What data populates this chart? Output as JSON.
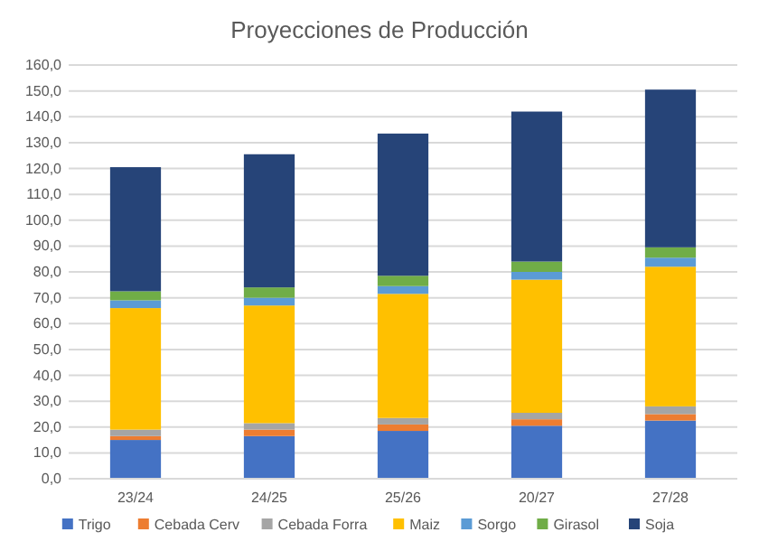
{
  "chart_data": {
    "type": "bar",
    "title": "Proyecciones de Producción",
    "stacked": true,
    "categories": [
      "23/24",
      "24/25",
      "25/26",
      "20/27",
      "27/28"
    ],
    "series": [
      {
        "name": "Trigo",
        "color": "#4472c4",
        "values": [
          15,
          16.5,
          18.5,
          20.5,
          22.5
        ]
      },
      {
        "name": "Cebada Cerv",
        "color": "#ed7d31",
        "values": [
          1.5,
          2.5,
          2.5,
          2.5,
          2.5
        ]
      },
      {
        "name": "Cebada Forra",
        "color": "#a5a5a5",
        "values": [
          2.5,
          2.5,
          2.5,
          2.5,
          3
        ]
      },
      {
        "name": "Maiz",
        "color": "#ffc000",
        "values": [
          47,
          45.5,
          48,
          51.5,
          54
        ]
      },
      {
        "name": "Sorgo",
        "color": "#5b9bd5",
        "values": [
          3,
          3,
          3,
          3,
          3.5
        ]
      },
      {
        "name": "Girasol",
        "color": "#70ad47",
        "values": [
          3.5,
          4,
          4,
          4,
          4
        ]
      },
      {
        "name": "Soja",
        "color": "#264478",
        "values": [
          48,
          51.5,
          55,
          58,
          61
        ]
      }
    ],
    "ylim": [
      0,
      160
    ],
    "yticks": [
      {
        "value": 0,
        "label": "0,0"
      },
      {
        "value": 10,
        "label": "10,0"
      },
      {
        "value": 20,
        "label": "20,0"
      },
      {
        "value": 30,
        "label": "30,0"
      },
      {
        "value": 40,
        "label": "40,0"
      },
      {
        "value": 50,
        "label": "50,0"
      },
      {
        "value": 60,
        "label": "60,0"
      },
      {
        "value": 70,
        "label": "70,0"
      },
      {
        "value": 80,
        "label": "80,0"
      },
      {
        "value": 90,
        "label": "90,0"
      },
      {
        "value": 100,
        "label": "100,0"
      },
      {
        "value": 110,
        "label": "110,0"
      },
      {
        "value": 120,
        "label": "120,0"
      },
      {
        "value": 130,
        "label": "130,0"
      },
      {
        "value": 140,
        "label": "140,0"
      },
      {
        "value": 150,
        "label": "150,0"
      },
      {
        "value": 160,
        "label": "160,0"
      }
    ],
    "grid": "y",
    "legend": "bottom"
  }
}
